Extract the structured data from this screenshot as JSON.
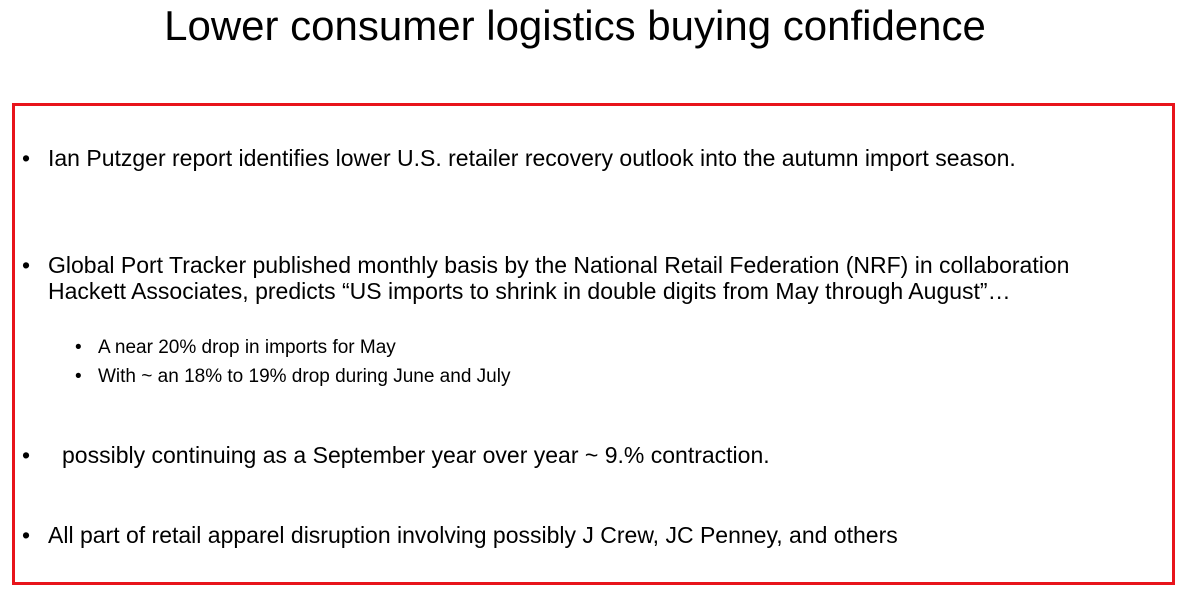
{
  "title": "Lower consumer logistics buying confidence",
  "bullets": [
    {
      "text": "Ian Putzger report identifies lower U.S. retailer recovery outlook into the autumn import season."
    },
    {
      "text": "Global Port Tracker published monthly basis by the National Retail Federation (NRF) in collaboration Hackett Associates, predicts “US imports to shrink in double digits from May through August”…",
      "sub_bullets": [
        "A near 20% drop in imports for May",
        "With ~ an 18% to 19% drop during June and July"
      ]
    },
    {
      "text": "possibly continuing as a September year over year ~ 9.% contraction."
    },
    {
      "text": "All part of retail apparel disruption involving possibly J Crew, JC Penney, and others"
    }
  ]
}
